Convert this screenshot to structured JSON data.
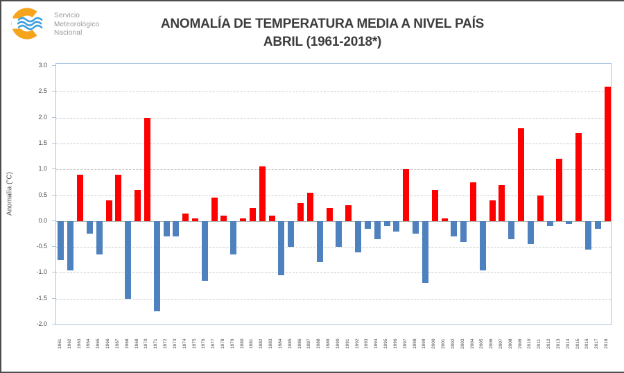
{
  "header": {
    "logo": {
      "lines": [
        "Servicio",
        "Meteorológico",
        "Nacional"
      ],
      "ring_color": "#f6a41c",
      "wave_color": "#3fa0dc"
    },
    "title_line1": "ANOMALÍA DE TEMPERATURA MEDIA A NIVEL PAÍS",
    "title_line2": "ABRIL (1961-2018*)"
  },
  "chart_data": {
    "type": "bar",
    "title": "ANOMALÍA DE TEMPERATURA MEDIA A NIVEL PAÍS",
    "subtitle": "ABRIL (1961-2018*)",
    "ylabel": "Anomalía (°C)",
    "ylim": [
      -2.0,
      3.0
    ],
    "ytick_step": 0.5,
    "grid": "horizontal-dashed",
    "legend_position": "none",
    "bar_colors": {
      "positive": "#fe0000",
      "negative": "#4e81bd"
    },
    "categories": [
      1961,
      1962,
      1963,
      1964,
      1965,
      1966,
      1967,
      1968,
      1969,
      1970,
      1971,
      1972,
      1973,
      1974,
      1975,
      1976,
      1977,
      1978,
      1979,
      1980,
      1981,
      1982,
      1983,
      1984,
      1985,
      1986,
      1987,
      1988,
      1989,
      1990,
      1991,
      1992,
      1993,
      1994,
      1995,
      1996,
      1997,
      1998,
      1999,
      2000,
      2001,
      2002,
      2003,
      2004,
      2005,
      2006,
      2007,
      2008,
      2009,
      2010,
      2011,
      2012,
      2013,
      2014,
      2015,
      2016,
      2017,
      2018
    ],
    "values": [
      -0.75,
      -0.95,
      0.9,
      -0.25,
      -0.65,
      0.4,
      0.9,
      -1.5,
      0.6,
      2.0,
      -1.75,
      -0.3,
      -0.3,
      0.15,
      0.05,
      -1.15,
      0.45,
      0.1,
      -0.65,
      0.05,
      0.25,
      1.05,
      0.1,
      -1.05,
      -0.5,
      0.35,
      0.55,
      -0.8,
      0.25,
      -0.5,
      0.3,
      -0.6,
      -0.15,
      -0.35,
      -0.1,
      -0.2,
      1.0,
      -0.25,
      -1.2,
      0.6,
      0.05,
      -0.3,
      -0.4,
      0.75,
      -0.95,
      0.4,
      0.7,
      -0.35,
      1.8,
      -0.45,
      0.5,
      -0.1,
      1.2,
      -0.05,
      1.7,
      -0.55,
      -0.15,
      2.6
    ]
  }
}
